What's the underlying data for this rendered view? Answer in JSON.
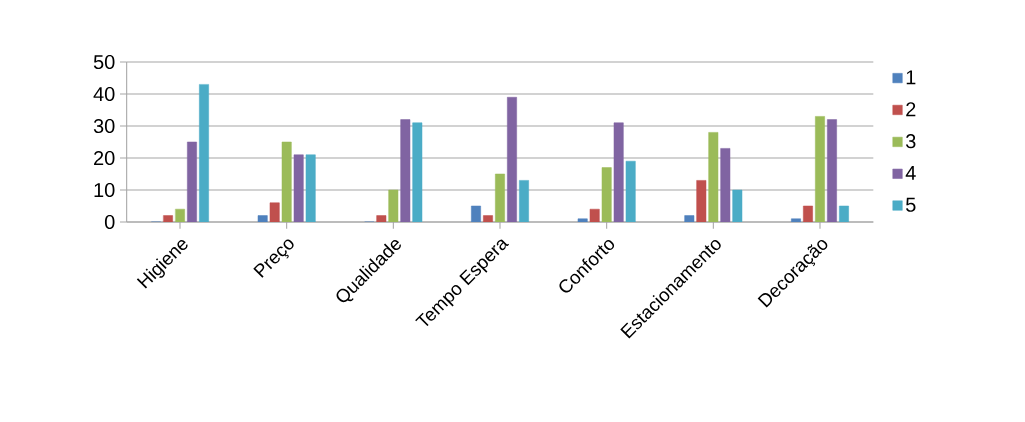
{
  "chart_data": {
    "type": "bar",
    "categories": [
      "Higiene",
      "Preço",
      "Qualidade",
      "Tempo Espera",
      "Conforto",
      "Estacionamento",
      "Decoração"
    ],
    "series": [
      {
        "name": "1",
        "color": "#4f81bd",
        "values": [
          0,
          2,
          0,
          5,
          1,
          2,
          1
        ]
      },
      {
        "name": "2",
        "color": "#c0504d",
        "values": [
          2,
          6,
          2,
          2,
          4,
          13,
          5
        ]
      },
      {
        "name": "3",
        "color": "#9bbb59",
        "values": [
          4,
          25,
          10,
          15,
          17,
          28,
          33
        ]
      },
      {
        "name": "4",
        "color": "#8064a2",
        "values": [
          25,
          21,
          32,
          39,
          31,
          23,
          32
        ]
      },
      {
        "name": "5",
        "color": "#4bacc6",
        "values": [
          43,
          21,
          31,
          13,
          19,
          10,
          5
        ]
      }
    ],
    "ylim": [
      0,
      50
    ],
    "yticks": [
      0,
      10,
      20,
      30,
      40,
      50
    ],
    "grid": "y",
    "legend": "right"
  }
}
